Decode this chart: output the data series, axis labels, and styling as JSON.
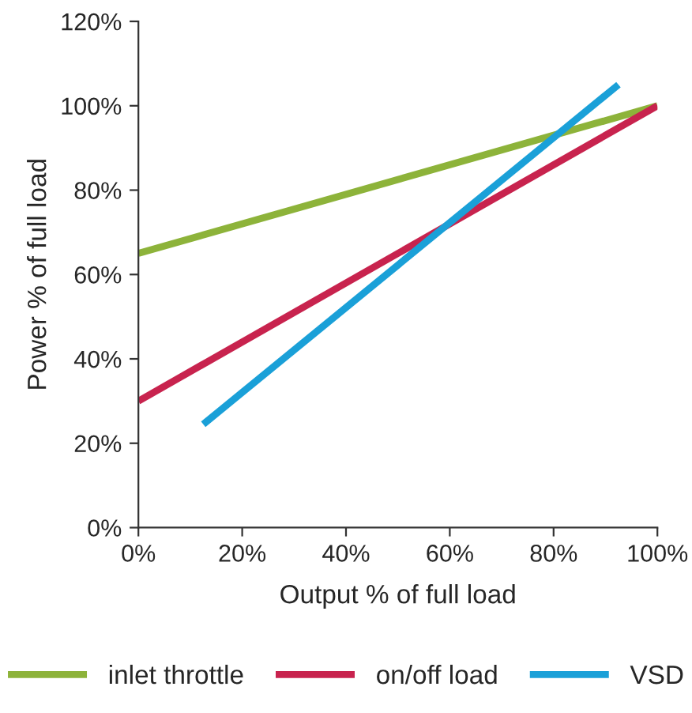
{
  "chart_data": {
    "type": "line",
    "xlabel": "Output % of full load",
    "ylabel": "Power % of full load",
    "xlim": [
      0,
      100
    ],
    "ylim": [
      0,
      120
    ],
    "xticks": [
      {
        "value": 0,
        "label": "0%"
      },
      {
        "value": 20,
        "label": "20%"
      },
      {
        "value": 40,
        "label": "40%"
      },
      {
        "value": 60,
        "label": "60%"
      },
      {
        "value": 80,
        "label": "80%"
      },
      {
        "value": 100,
        "label": "100%"
      }
    ],
    "yticks": [
      {
        "value": 0,
        "label": "0%"
      },
      {
        "value": 20,
        "label": "20%"
      },
      {
        "value": 40,
        "label": "40%"
      },
      {
        "value": 60,
        "label": "60%"
      },
      {
        "value": 80,
        "label": "80%"
      },
      {
        "value": 100,
        "label": "100%"
      },
      {
        "value": 120,
        "label": "120%"
      }
    ],
    "series": [
      {
        "name": "inlet throttle",
        "color": "#8db33a",
        "x": [
          0,
          100
        ],
        "values": [
          65,
          100
        ]
      },
      {
        "name": "on/off load",
        "color": "#c8234e",
        "x": [
          0,
          100
        ],
        "values": [
          30,
          100
        ]
      },
      {
        "name": "VSD",
        "color": "#1aa0d8",
        "x": [
          12.5,
          92.5
        ],
        "values": [
          24.5,
          105
        ]
      }
    ],
    "grid": false,
    "legend": "bottom",
    "marker": "none",
    "line_style": "solid"
  }
}
